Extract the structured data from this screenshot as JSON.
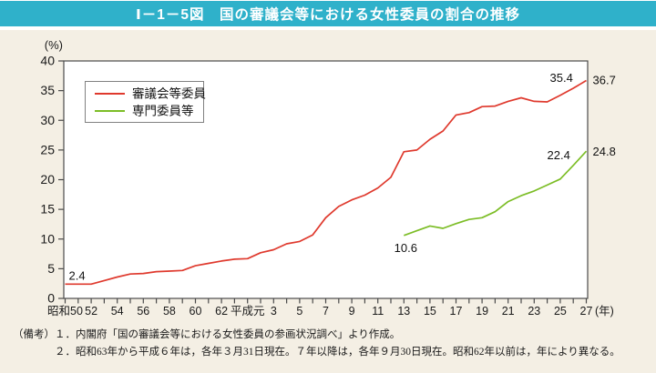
{
  "header": {
    "title": "Ⅰ－1－5図　国の審議会等における女性委員の割合の推移",
    "bar_color": "#2fb1ca"
  },
  "chart_data": {
    "type": "line",
    "title": "国の審議会等における女性委員の割合の推移",
    "unit_label": "(%)",
    "year_unit_label": "(年)",
    "ylim": [
      0,
      40
    ],
    "ytick_step": 5,
    "grid": false,
    "legend_position": "top-left-inside",
    "x_start_year": 1975,
    "x_end_year": 2015,
    "xtick_labels": [
      {
        "year": 1975,
        "label": "昭和50"
      },
      {
        "year": 1977,
        "label": "52"
      },
      {
        "year": 1979,
        "label": "54"
      },
      {
        "year": 1981,
        "label": "56"
      },
      {
        "year": 1983,
        "label": "58"
      },
      {
        "year": 1985,
        "label": "60"
      },
      {
        "year": 1987,
        "label": "62"
      },
      {
        "year": 1989,
        "label": "平成元"
      },
      {
        "year": 1991,
        "label": "3"
      },
      {
        "year": 1993,
        "label": "5"
      },
      {
        "year": 1995,
        "label": "7"
      },
      {
        "year": 1997,
        "label": "9"
      },
      {
        "year": 1999,
        "label": "11"
      },
      {
        "year": 2001,
        "label": "13"
      },
      {
        "year": 2003,
        "label": "15"
      },
      {
        "year": 2005,
        "label": "17"
      },
      {
        "year": 2007,
        "label": "19"
      },
      {
        "year": 2009,
        "label": "21"
      },
      {
        "year": 2011,
        "label": "23"
      },
      {
        "year": 2013,
        "label": "25"
      },
      {
        "year": 2015,
        "label": "27"
      }
    ],
    "series": [
      {
        "name": "審議会等委員",
        "color": "#df392d",
        "start_year": 1975,
        "values": [
          2.4,
          2.4,
          2.4,
          3.0,
          3.6,
          4.1,
          4.2,
          4.5,
          4.6,
          4.7,
          5.5,
          5.9,
          6.3,
          6.6,
          6.7,
          7.7,
          8.2,
          9.2,
          9.6,
          10.7,
          13.6,
          15.5,
          16.6,
          17.4,
          18.6,
          20.4,
          24.7,
          25.0,
          26.8,
          28.2,
          30.9,
          31.3,
          32.3,
          32.4,
          33.2,
          33.8,
          33.2,
          33.1,
          34.2,
          35.4,
          36.7
        ]
      },
      {
        "name": "専門委員等",
        "color": "#7cbd26",
        "start_year": 2001,
        "values": [
          10.6,
          11.4,
          12.2,
          11.8,
          12.6,
          13.3,
          13.6,
          14.6,
          16.3,
          17.3,
          18.1,
          19.1,
          20.1,
          22.4,
          24.8
        ]
      }
    ],
    "annotations": [
      {
        "series": 0,
        "year": 1975,
        "value": 2.4,
        "text": "2.4"
      },
      {
        "series": 0,
        "year": 2014,
        "value": 35.4,
        "text": "35.4"
      },
      {
        "series": 0,
        "year": 2015,
        "value": 36.7,
        "text": "36.7"
      },
      {
        "series": 1,
        "year": 2001,
        "value": 10.6,
        "text": "10.6"
      },
      {
        "series": 1,
        "year": 2014,
        "value": 22.4,
        "text": "22.4"
      },
      {
        "series": 1,
        "year": 2015,
        "value": 24.8,
        "text": "24.8"
      }
    ]
  },
  "notes": {
    "prefix": "（備考）",
    "line1": "１．内閣府「国の審議会等における女性委員の参画状況調べ」より作成。",
    "line2": "２．昭和63年から平成６年は，各年３月31日現在。７年以降は，各年９月30日現在。昭和62年以前は，年により異なる。"
  }
}
